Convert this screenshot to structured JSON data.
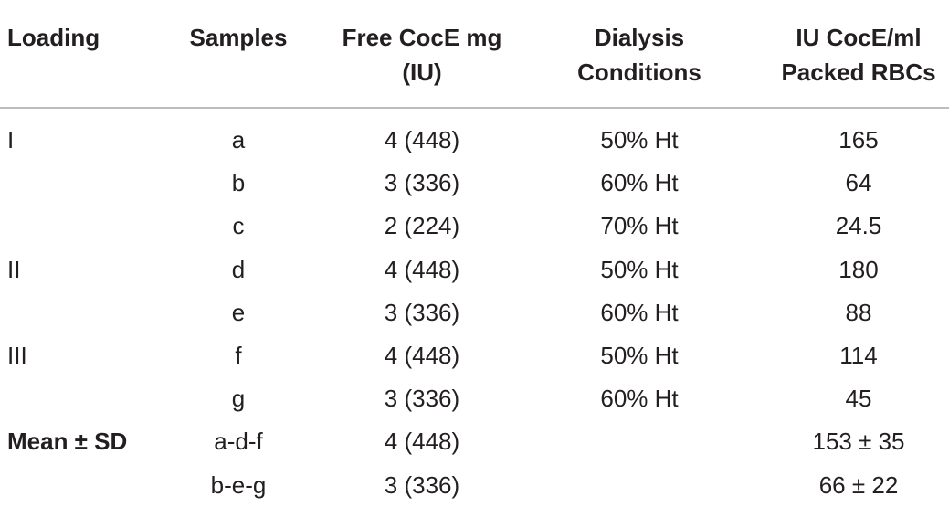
{
  "table": {
    "headers": [
      "Loading",
      "Samples",
      "Free CocE mg\n(IU)",
      "Dialysis\nConditions",
      "IU CocE/ml\nPacked RBCs"
    ],
    "rows": [
      [
        "I",
        "a",
        "4 (448)",
        "50% Ht",
        "165"
      ],
      [
        "",
        "b",
        "3 (336)",
        "60% Ht",
        "64"
      ],
      [
        "",
        "c",
        "2 (224)",
        "70% Ht",
        "24.5"
      ],
      [
        "II",
        "d",
        "4 (448)",
        "50% Ht",
        "180"
      ],
      [
        "",
        "e",
        "3 (336)",
        "60% Ht",
        "88"
      ],
      [
        "III",
        "f",
        "4 (448)",
        "50% Ht",
        "114"
      ],
      [
        "",
        "g",
        "3 (336)",
        "60% Ht",
        "45"
      ],
      [
        "Mean ± SD",
        "a-d-f",
        "4 (448)",
        "",
        "153 ± 35"
      ],
      [
        "",
        "b-e-g",
        "3 (336)",
        "",
        "66 ± 22"
      ]
    ]
  }
}
